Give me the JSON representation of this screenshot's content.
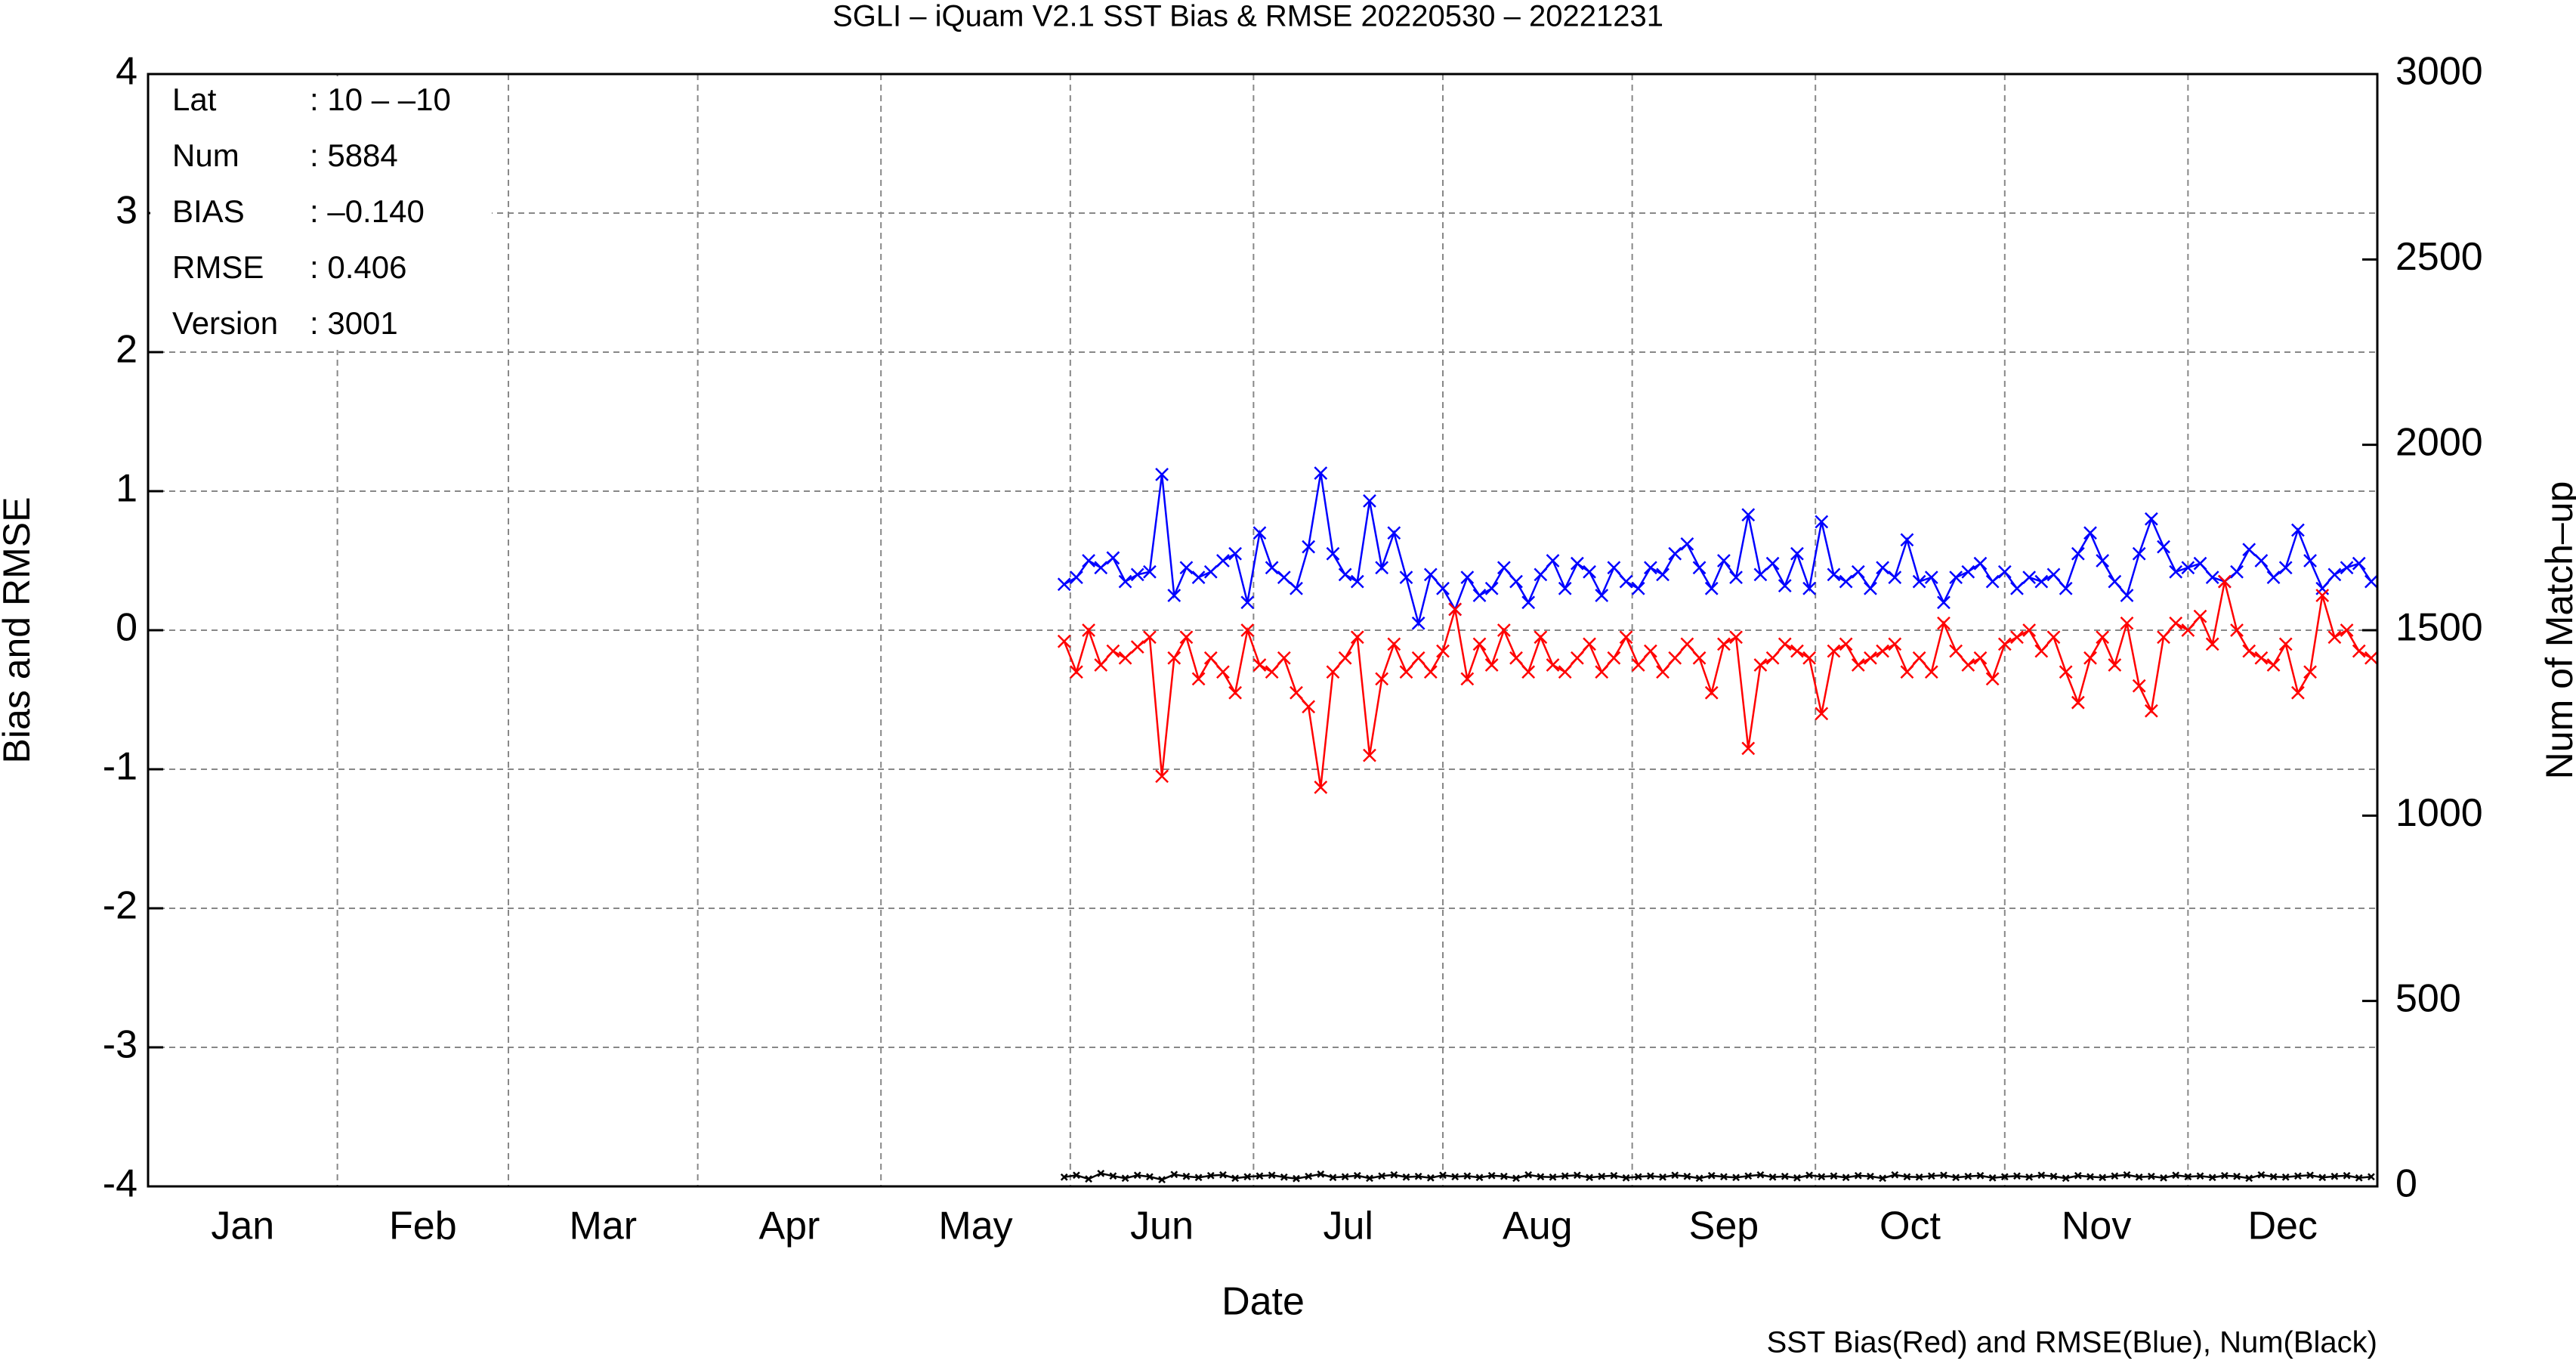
{
  "chart_data": {
    "type": "line",
    "title": "SGLI – iQuam V2.1 SST Bias & RMSE 20220530 – 20221231",
    "x_label": "Date",
    "y_label": "Bias and RMSE",
    "y2_label": "Num of Match–up",
    "footnote": "SST Bias(Red) and RMSE(Blue), Num(Black)",
    "stats": [
      {
        "label": "Lat",
        "value": ": 10 – –10"
      },
      {
        "label": "Num",
        "value": ": 5884"
      },
      {
        "label": "BIAS",
        "value": ": –0.140"
      },
      {
        "label": "RMSE",
        "value": ": 0.406"
      },
      {
        "label": "Version",
        "value": ": 3001"
      }
    ],
    "xlim": [
      0,
      365
    ],
    "xticks": [
      {
        "value": 15.5,
        "label": "Jan"
      },
      {
        "value": 45,
        "label": "Feb"
      },
      {
        "value": 74.5,
        "label": "Mar"
      },
      {
        "value": 105,
        "label": "Apr"
      },
      {
        "value": 135.5,
        "label": "May"
      },
      {
        "value": 166,
        "label": "Jun"
      },
      {
        "value": 196.5,
        "label": "Jul"
      },
      {
        "value": 227.5,
        "label": "Aug"
      },
      {
        "value": 258,
        "label": "Sep"
      },
      {
        "value": 288.5,
        "label": "Oct"
      },
      {
        "value": 319,
        "label": "Nov"
      },
      {
        "value": 349.5,
        "label": "Dec"
      }
    ],
    "xgrid": [
      31,
      59,
      90,
      120,
      151,
      181,
      212,
      243,
      273,
      304,
      334
    ],
    "ylim": [
      -4,
      4
    ],
    "yticks": [
      -4,
      -3,
      -2,
      -1,
      0,
      1,
      2,
      3,
      4
    ],
    "y2lim": [
      0,
      3000
    ],
    "y2ticks": [
      0,
      500,
      1000,
      1500,
      2000,
      2500,
      3000
    ],
    "grid": true,
    "x": [
      150,
      152,
      154,
      156,
      158,
      160,
      162,
      164,
      166,
      168,
      170,
      172,
      174,
      176,
      178,
      180,
      182,
      184,
      186,
      188,
      190,
      192,
      194,
      196,
      198,
      200,
      202,
      204,
      206,
      208,
      210,
      212,
      214,
      216,
      218,
      220,
      222,
      224,
      226,
      228,
      230,
      232,
      234,
      236,
      238,
      240,
      242,
      244,
      246,
      248,
      250,
      252,
      254,
      256,
      258,
      260,
      262,
      264,
      266,
      268,
      270,
      272,
      274,
      276,
      278,
      280,
      282,
      284,
      286,
      288,
      290,
      292,
      294,
      296,
      298,
      300,
      302,
      304,
      306,
      308,
      310,
      312,
      314,
      316,
      318,
      320,
      322,
      324,
      326,
      328,
      330,
      332,
      334,
      336,
      338,
      340,
      342,
      344,
      346,
      348,
      350,
      352,
      354,
      356,
      358,
      360,
      362,
      364
    ],
    "series": [
      {
        "name": "RMSE",
        "color": "#0000ff",
        "values": [
          0.33,
          0.38,
          0.5,
          0.45,
          0.52,
          0.35,
          0.4,
          0.42,
          1.12,
          0.25,
          0.45,
          0.38,
          0.42,
          0.5,
          0.55,
          0.2,
          0.7,
          0.45,
          0.38,
          0.3,
          0.6,
          1.13,
          0.55,
          0.4,
          0.35,
          0.93,
          0.45,
          0.7,
          0.38,
          0.05,
          0.4,
          0.3,
          0.15,
          0.38,
          0.25,
          0.3,
          0.45,
          0.35,
          0.2,
          0.4,
          0.5,
          0.3,
          0.48,
          0.42,
          0.25,
          0.45,
          0.35,
          0.3,
          0.45,
          0.4,
          0.55,
          0.62,
          0.45,
          0.3,
          0.5,
          0.38,
          0.83,
          0.4,
          0.48,
          0.32,
          0.55,
          0.3,
          0.78,
          0.4,
          0.35,
          0.42,
          0.3,
          0.45,
          0.38,
          0.65,
          0.35,
          0.38,
          0.2,
          0.38,
          0.42,
          0.48,
          0.35,
          0.42,
          0.3,
          0.38,
          0.35,
          0.4,
          0.3,
          0.55,
          0.7,
          0.5,
          0.35,
          0.25,
          0.55,
          0.8,
          0.6,
          0.42,
          0.45,
          0.48,
          0.38,
          0.35,
          0.42,
          0.58,
          0.5,
          0.38,
          0.45,
          0.72,
          0.5,
          0.3,
          0.4,
          0.45,
          0.48,
          0.35
        ]
      },
      {
        "name": "Bias",
        "color": "#ff0000",
        "values": [
          -0.08,
          -0.3,
          0.0,
          -0.25,
          -0.15,
          -0.2,
          -0.12,
          -0.05,
          -1.05,
          -0.2,
          -0.05,
          -0.35,
          -0.2,
          -0.3,
          -0.45,
          0.0,
          -0.25,
          -0.3,
          -0.2,
          -0.45,
          -0.55,
          -1.13,
          -0.3,
          -0.2,
          -0.05,
          -0.9,
          -0.35,
          -0.1,
          -0.3,
          -0.2,
          -0.3,
          -0.15,
          0.15,
          -0.35,
          -0.1,
          -0.25,
          0.0,
          -0.2,
          -0.3,
          -0.05,
          -0.25,
          -0.3,
          -0.2,
          -0.1,
          -0.3,
          -0.2,
          -0.05,
          -0.25,
          -0.15,
          -0.3,
          -0.2,
          -0.1,
          -0.2,
          -0.45,
          -0.1,
          -0.05,
          -0.85,
          -0.25,
          -0.2,
          -0.1,
          -0.15,
          -0.2,
          -0.6,
          -0.15,
          -0.1,
          -0.25,
          -0.2,
          -0.15,
          -0.1,
          -0.3,
          -0.2,
          -0.3,
          0.05,
          -0.15,
          -0.25,
          -0.2,
          -0.35,
          -0.1,
          -0.05,
          0.0,
          -0.15,
          -0.05,
          -0.3,
          -0.52,
          -0.2,
          -0.05,
          -0.25,
          0.05,
          -0.4,
          -0.58,
          -0.05,
          0.05,
          0.0,
          0.1,
          -0.1,
          0.35,
          0.0,
          -0.15,
          -0.2,
          -0.25,
          -0.1,
          -0.45,
          -0.3,
          0.25,
          -0.05,
          0.0,
          -0.15,
          -0.2
        ]
      },
      {
        "name": "Num",
        "color": "#000000",
        "axis": "y2",
        "values": [
          25,
          30,
          20,
          35,
          28,
          22,
          30,
          26,
          18,
          32,
          27,
          24,
          29,
          31,
          22,
          26,
          28,
          30,
          25,
          21,
          27,
          33,
          24,
          26,
          29,
          22,
          28,
          31,
          25,
          27,
          23,
          30,
          26,
          28,
          24,
          29,
          27,
          22,
          31,
          26,
          25,
          28,
          30,
          24,
          27,
          29,
          23,
          26,
          28,
          25,
          30,
          27,
          22,
          29,
          26,
          24,
          28,
          31,
          25,
          27,
          23,
          30,
          26,
          28,
          24,
          29,
          27,
          22,
          31,
          26,
          25,
          28,
          30,
          24,
          27,
          29,
          23,
          26,
          28,
          25,
          30,
          27,
          22,
          29,
          26,
          24,
          28,
          31,
          25,
          27,
          23,
          30,
          26,
          28,
          24,
          29,
          27,
          22,
          31,
          26,
          25,
          28,
          30,
          24,
          27,
          29,
          23,
          26
        ]
      }
    ]
  }
}
